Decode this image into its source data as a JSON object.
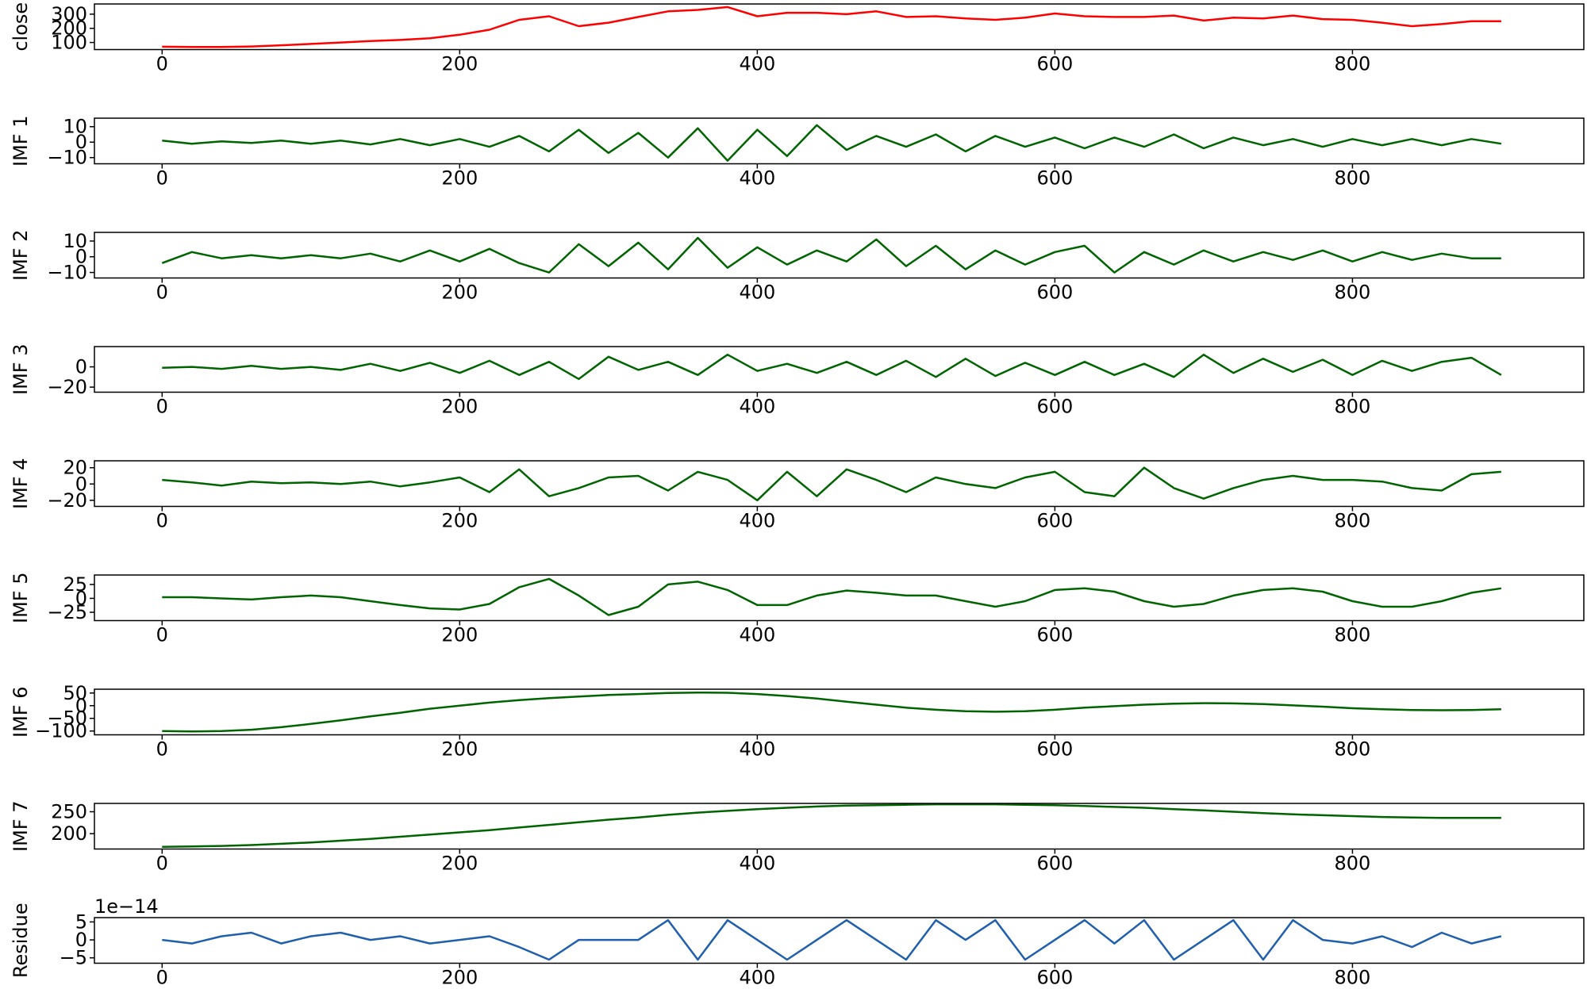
{
  "chart_data": [
    {
      "type": "line",
      "ylabel": "close",
      "color": "#ff0000",
      "x": [
        0,
        20,
        40,
        60,
        80,
        100,
        120,
        140,
        160,
        180,
        200,
        220,
        240,
        260,
        280,
        300,
        320,
        340,
        360,
        380,
        400,
        420,
        440,
        460,
        480,
        500,
        520,
        540,
        560,
        580,
        600,
        620,
        640,
        660,
        680,
        700,
        720,
        740,
        760,
        780,
        800,
        820,
        840,
        860,
        880,
        900
      ],
      "values": [
        70,
        68,
        68,
        72,
        80,
        90,
        100,
        110,
        118,
        130,
        155,
        190,
        260,
        285,
        215,
        240,
        280,
        320,
        330,
        350,
        285,
        310,
        310,
        300,
        320,
        280,
        285,
        270,
        260,
        275,
        305,
        285,
        280,
        280,
        290,
        255,
        275,
        270,
        290,
        265,
        260,
        240,
        215,
        230,
        250,
        250
      ],
      "xlim": [
        -45.5,
        955.5
      ],
      "xticks": [
        0,
        200,
        400,
        600,
        800
      ],
      "ylim": [
        50,
        372
      ],
      "yticks": [
        100,
        200,
        300
      ]
    },
    {
      "type": "line",
      "ylabel": "IMF 1",
      "color": "#006400",
      "x": [
        0,
        20,
        40,
        60,
        80,
        100,
        120,
        140,
        160,
        180,
        200,
        220,
        240,
        260,
        280,
        300,
        320,
        340,
        360,
        380,
        400,
        420,
        440,
        460,
        480,
        500,
        520,
        540,
        560,
        580,
        600,
        620,
        640,
        660,
        680,
        700,
        720,
        740,
        760,
        780,
        800,
        820,
        840,
        860,
        880,
        900
      ],
      "values": [
        1,
        -1,
        0.5,
        -0.5,
        1,
        -1,
        1,
        -1.5,
        2,
        -2,
        2,
        -3,
        4,
        -6,
        8,
        -7,
        6,
        -10,
        9,
        -12,
        8,
        -9,
        11,
        -5,
        4,
        -3,
        5,
        -6,
        4,
        -3,
        3,
        -4,
        3,
        -3,
        5,
        -4,
        3,
        -2,
        2,
        -3,
        2,
        -2,
        2,
        -2,
        2,
        -1
      ],
      "xlim": [
        -45.5,
        955.5
      ],
      "xticks": [
        0,
        200,
        400,
        600,
        800
      ],
      "ylim": [
        -14,
        15.5
      ],
      "yticks": [
        {
          "value": -10,
          "label": "−10"
        },
        0,
        10
      ]
    },
    {
      "type": "line",
      "ylabel": "IMF 2",
      "color": "#006400",
      "x": [
        0,
        20,
        40,
        60,
        80,
        100,
        120,
        140,
        160,
        180,
        200,
        220,
        240,
        260,
        280,
        300,
        320,
        340,
        360,
        380,
        400,
        420,
        440,
        460,
        480,
        500,
        520,
        540,
        560,
        580,
        600,
        620,
        640,
        660,
        680,
        700,
        720,
        740,
        760,
        780,
        800,
        820,
        840,
        860,
        880,
        900
      ],
      "values": [
        -4,
        3,
        -1,
        1,
        -1,
        1,
        -1,
        2,
        -3,
        4,
        -3,
        5,
        -4,
        -10,
        8,
        -6,
        9,
        -8,
        12,
        -7,
        6,
        -5,
        4,
        -3,
        11,
        -6,
        7,
        -8,
        4,
        -5,
        3,
        7,
        -10,
        3,
        -5,
        4,
        -3,
        3,
        -2,
        4,
        -3,
        3,
        -2,
        2,
        -1,
        -1
      ],
      "xlim": [
        -45.5,
        955.5
      ],
      "xticks": [
        0,
        200,
        400,
        600,
        800
      ],
      "ylim": [
        -13.5,
        15.5
      ],
      "yticks": [
        {
          "value": -10,
          "label": "−10"
        },
        0,
        10
      ]
    },
    {
      "type": "line",
      "ylabel": "IMF 3",
      "color": "#006400",
      "x": [
        0,
        20,
        40,
        60,
        80,
        100,
        120,
        140,
        160,
        180,
        200,
        220,
        240,
        260,
        280,
        300,
        320,
        340,
        360,
        380,
        400,
        420,
        440,
        460,
        480,
        500,
        520,
        540,
        560,
        580,
        600,
        620,
        640,
        660,
        680,
        700,
        720,
        740,
        760,
        780,
        800,
        820,
        840,
        860,
        880,
        900
      ],
      "values": [
        -1,
        0,
        -2,
        1,
        -2,
        0,
        -3,
        3,
        -4,
        4,
        -6,
        6,
        -8,
        5,
        -12,
        10,
        -3,
        5,
        -8,
        12,
        -4,
        3,
        -6,
        5,
        -8,
        6,
        -10,
        8,
        -9,
        4,
        -8,
        5,
        -8,
        3,
        -10,
        12,
        -6,
        8,
        -5,
        7,
        -8,
        6,
        -4,
        5,
        9,
        -8
      ],
      "xlim": [
        -45.5,
        955.5
      ],
      "xticks": [
        0,
        200,
        400,
        600,
        800
      ],
      "ylim": [
        -25,
        20
      ],
      "yticks": [
        {
          "value": -20,
          "label": "−20"
        },
        0
      ]
    },
    {
      "type": "line",
      "ylabel": "IMF 4",
      "color": "#006400",
      "x": [
        0,
        20,
        40,
        60,
        80,
        100,
        120,
        140,
        160,
        180,
        200,
        220,
        240,
        260,
        280,
        300,
        320,
        340,
        360,
        380,
        400,
        420,
        440,
        460,
        480,
        500,
        520,
        540,
        560,
        580,
        600,
        620,
        640,
        660,
        680,
        700,
        720,
        740,
        760,
        780,
        800,
        820,
        840,
        860,
        880,
        900
      ],
      "values": [
        5,
        2,
        -2,
        3,
        1,
        2,
        0,
        3,
        -3,
        2,
        8,
        -10,
        18,
        -15,
        -5,
        8,
        10,
        -8,
        15,
        5,
        -20,
        15,
        -15,
        18,
        5,
        -10,
        8,
        0,
        -5,
        8,
        15,
        -10,
        -15,
        20,
        -5,
        -18,
        -5,
        5,
        10,
        5,
        5,
        3,
        -5,
        -8,
        12,
        15
      ],
      "xlim": [
        -45.5,
        955.5
      ],
      "xticks": [
        0,
        200,
        400,
        600,
        800
      ],
      "ylim": [
        -27.5,
        28.5
      ],
      "yticks": [
        {
          "value": -20,
          "label": "−20"
        },
        0,
        20
      ]
    },
    {
      "type": "line",
      "ylabel": "IMF 5",
      "color": "#006400",
      "x": [
        0,
        20,
        40,
        60,
        80,
        100,
        120,
        140,
        160,
        180,
        200,
        220,
        240,
        260,
        280,
        300,
        320,
        340,
        360,
        380,
        400,
        420,
        440,
        460,
        480,
        500,
        520,
        540,
        560,
        580,
        600,
        620,
        640,
        660,
        680,
        700,
        720,
        740,
        760,
        780,
        800,
        820,
        840,
        860,
        880,
        900
      ],
      "values": [
        2,
        2,
        0,
        -2,
        2,
        5,
        2,
        -5,
        -12,
        -18,
        -20,
        -10,
        20,
        35,
        5,
        -30,
        -15,
        25,
        30,
        15,
        -12,
        -12,
        5,
        14,
        10,
        5,
        5,
        -5,
        -15,
        -5,
        15,
        18,
        12,
        -5,
        -15,
        -10,
        5,
        15,
        18,
        12,
        -5,
        -15,
        -15,
        -5,
        10,
        18
      ],
      "xlim": [
        -45.5,
        955.5
      ],
      "xticks": [
        0,
        200,
        400,
        600,
        800
      ],
      "ylim": [
        -40,
        42
      ],
      "yticks": [
        {
          "value": -25,
          "label": "−25"
        },
        0,
        25
      ]
    },
    {
      "type": "line",
      "ylabel": "IMF 6",
      "color": "#006400",
      "x": [
        0,
        20,
        40,
        60,
        80,
        100,
        120,
        140,
        160,
        180,
        200,
        220,
        240,
        260,
        280,
        300,
        320,
        340,
        360,
        380,
        400,
        420,
        440,
        460,
        480,
        500,
        520,
        540,
        560,
        580,
        600,
        620,
        640,
        660,
        680,
        700,
        720,
        740,
        760,
        780,
        800,
        820,
        840,
        860,
        880,
        900
      ],
      "values": [
        -100,
        -102,
        -100,
        -95,
        -85,
        -72,
        -58,
        -42,
        -28,
        -12,
        0,
        12,
        22,
        30,
        36,
        42,
        46,
        50,
        52,
        51,
        46,
        38,
        28,
        16,
        4,
        -8,
        -16,
        -22,
        -24,
        -22,
        -16,
        -8,
        -2,
        4,
        8,
        10,
        9,
        6,
        1,
        -4,
        -10,
        -14,
        -17,
        -18,
        -17,
        -14
      ],
      "xlim": [
        -45.5,
        955.5
      ],
      "xticks": [
        0,
        200,
        400,
        600,
        800
      ],
      "ylim": [
        -115,
        65
      ],
      "yticks": [
        {
          "value": -100,
          "label": "−100"
        },
        {
          "value": -50,
          "label": "−50"
        },
        0,
        50
      ]
    },
    {
      "type": "line",
      "ylabel": "IMF 7",
      "color": "#006400",
      "x": [
        0,
        20,
        40,
        60,
        80,
        100,
        120,
        140,
        160,
        180,
        200,
        220,
        240,
        260,
        280,
        300,
        320,
        340,
        360,
        380,
        400,
        420,
        440,
        460,
        480,
        500,
        520,
        540,
        560,
        580,
        600,
        620,
        640,
        660,
        680,
        700,
        720,
        740,
        760,
        780,
        800,
        820,
        840,
        860,
        880,
        900
      ],
      "values": [
        170,
        171,
        172,
        174,
        177,
        180,
        184,
        188,
        193,
        198,
        203,
        208,
        214,
        220,
        226,
        232,
        237,
        243,
        248,
        252,
        256,
        259,
        262,
        264,
        265,
        266,
        267,
        267,
        267,
        266,
        265,
        263,
        261,
        259,
        256,
        253,
        250,
        247,
        244,
        242,
        240,
        238,
        237,
        236,
        236,
        236
      ],
      "xlim": [
        -45.5,
        955.5
      ],
      "xticks": [
        0,
        200,
        400,
        600,
        800
      ],
      "ylim": [
        165,
        269
      ],
      "yticks": [
        200,
        250
      ]
    },
    {
      "type": "line",
      "ylabel": "Residue",
      "offset_text": "1e−14",
      "color": "#1f5fad",
      "x": [
        0,
        20,
        40,
        60,
        80,
        100,
        120,
        140,
        160,
        180,
        200,
        220,
        240,
        260,
        280,
        300,
        320,
        340,
        360,
        380,
        400,
        420,
        440,
        460,
        480,
        500,
        520,
        540,
        560,
        580,
        600,
        620,
        640,
        660,
        680,
        700,
        720,
        740,
        760,
        780,
        800,
        820,
        840,
        860,
        880,
        900
      ],
      "values": [
        0,
        -1,
        1,
        2,
        -1,
        1,
        2,
        0,
        1,
        -1,
        0,
        1,
        -2,
        -5.5,
        0,
        0,
        0,
        5.5,
        -5.5,
        5.5,
        0,
        -5.5,
        0,
        5.5,
        0,
        -5.5,
        5.5,
        0,
        5.5,
        -5.5,
        0,
        5.5,
        -1,
        5.5,
        -5.5,
        0,
        5.5,
        -5.5,
        5.5,
        0,
        -1,
        1,
        -2,
        2,
        -1,
        1
      ],
      "xlim": [
        -45.5,
        955.5
      ],
      "xticks": [
        0,
        200,
        400,
        600,
        800
      ],
      "ylim": [
        -6.5,
        6.2
      ],
      "yticks": [
        {
          "value": -5,
          "label": "−5"
        },
        0,
        5
      ]
    }
  ]
}
